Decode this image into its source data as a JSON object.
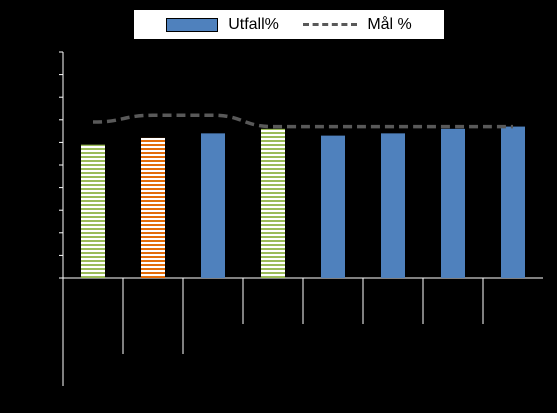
{
  "chart_data": {
    "type": "bar",
    "legend": {
      "placement": "top"
    },
    "series": [
      {
        "name": "Utfall%",
        "type": "bar",
        "color": "#4F81BD",
        "values": [
          59,
          62,
          64,
          66,
          63,
          64,
          66,
          67
        ],
        "bar_styles": [
          "green-hatch",
          "orange-hatch",
          "solid",
          "green-hatch",
          "solid",
          "solid",
          "solid",
          "solid"
        ]
      },
      {
        "name": "Mål %",
        "type": "line",
        "color": "#595959",
        "dash": true,
        "values": [
          69,
          72,
          72,
          67,
          67,
          67,
          67,
          67
        ]
      }
    ],
    "categories": [
      "",
      "",
      "",
      "",
      "",
      "",
      "",
      ""
    ],
    "ylim": [
      0,
      100
    ],
    "y_ticks": [
      0,
      10,
      20,
      30,
      40,
      50,
      60,
      70,
      80,
      90,
      100
    ],
    "grid": false,
    "background": "#000000",
    "axis_color": "#ffffff"
  }
}
